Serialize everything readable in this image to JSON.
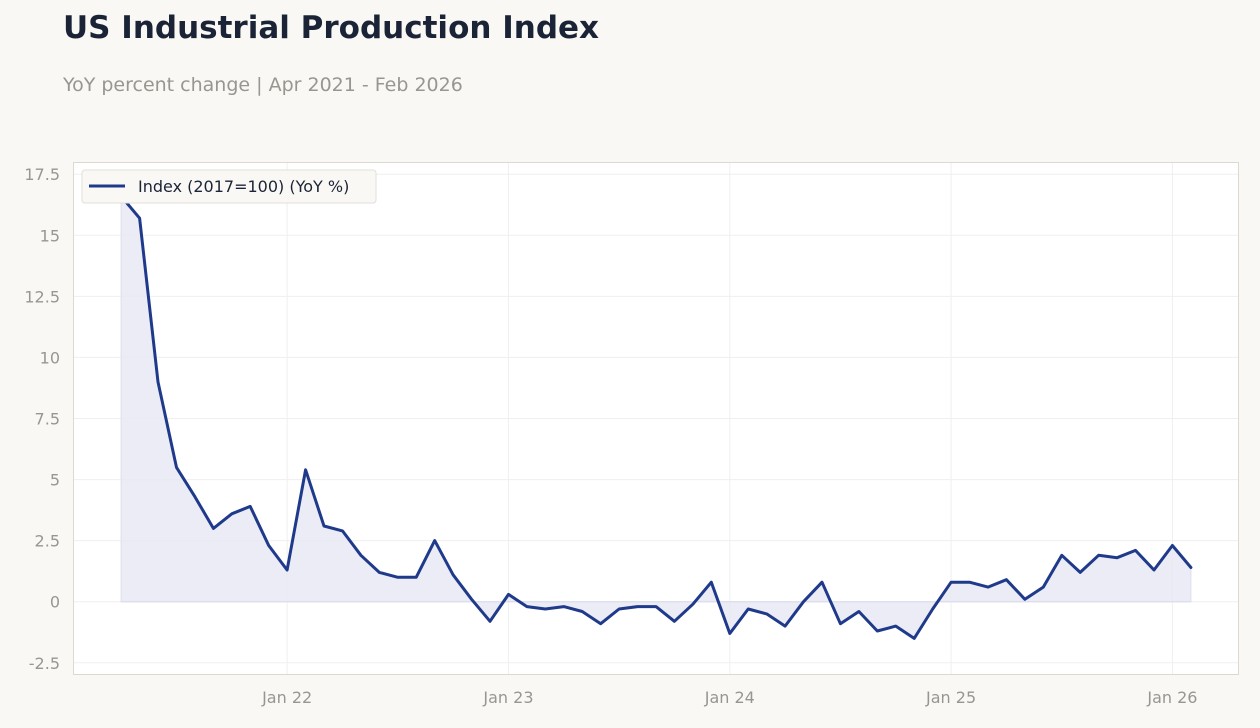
{
  "colors": {
    "background": "#f9f8f5",
    "plot_background": "#ffffff",
    "line": "#1f3a8a",
    "fill": "#e9ebf4",
    "grid": "#efefef",
    "frame": "#dcd9d2",
    "title": "#1b2436",
    "muted": "#999690"
  },
  "chart_data": {
    "type": "line",
    "title": "US Industrial Production Index",
    "subtitle": "YoY percent change | Apr 2021 - Feb 2026",
    "xlabel": "",
    "ylabel": "",
    "x_start": "2021-04",
    "x_end": "2026-02",
    "ylim": [
      -3.0,
      18.0
    ],
    "y_ticks": [
      -2.5,
      0,
      2.5,
      5,
      7.5,
      10,
      12.5,
      15,
      17.5
    ],
    "y_tick_labels": [
      "-2.5",
      "0",
      "2.5",
      "5",
      "7.5",
      "10",
      "12.5",
      "15",
      "17.5"
    ],
    "x_ticks": [
      "2022-01",
      "2023-01",
      "2024-01",
      "2025-01",
      "2026-01"
    ],
    "x_tick_labels": [
      "Jan 22",
      "Jan 23",
      "Jan 24",
      "Jan 25",
      "Jan 26"
    ],
    "grid": true,
    "fill_to_zero": true,
    "legend_position": "top-left",
    "series": [
      {
        "name": "Index (2017=100) (YoY %)",
        "x": [
          "2021-04",
          "2021-05",
          "2021-06",
          "2021-07",
          "2021-08",
          "2021-09",
          "2021-10",
          "2021-11",
          "2021-12",
          "2022-01",
          "2022-02",
          "2022-03",
          "2022-04",
          "2022-05",
          "2022-06",
          "2022-07",
          "2022-08",
          "2022-09",
          "2022-10",
          "2022-11",
          "2022-12",
          "2023-01",
          "2023-02",
          "2023-03",
          "2023-04",
          "2023-05",
          "2023-06",
          "2023-07",
          "2023-08",
          "2023-09",
          "2023-10",
          "2023-11",
          "2023-12",
          "2024-01",
          "2024-02",
          "2024-03",
          "2024-04",
          "2024-05",
          "2024-06",
          "2024-07",
          "2024-08",
          "2024-09",
          "2024-10",
          "2024-11",
          "2024-12",
          "2025-01",
          "2025-02",
          "2025-03",
          "2025-04",
          "2025-05",
          "2025-06",
          "2025-07",
          "2025-08",
          "2025-09",
          "2025-10",
          "2025-11",
          "2025-12",
          "2026-01",
          "2026-02"
        ],
        "values": [
          16.6,
          15.7,
          9.0,
          5.5,
          4.3,
          3.0,
          3.6,
          3.9,
          2.3,
          1.3,
          5.4,
          3.1,
          2.9,
          1.9,
          1.2,
          1.0,
          1.0,
          2.5,
          1.1,
          0.1,
          -0.8,
          0.3,
          -0.2,
          -0.3,
          -0.2,
          -0.4,
          -0.9,
          -0.3,
          -0.2,
          -0.2,
          -0.8,
          -0.1,
          0.8,
          -1.3,
          -0.3,
          -0.5,
          -1.0,
          0.0,
          0.8,
          -0.9,
          -0.4,
          -1.2,
          -1.0,
          -1.5,
          -0.3,
          0.8,
          0.8,
          0.6,
          0.9,
          0.1,
          0.6,
          1.9,
          1.2,
          1.9,
          1.8,
          2.1,
          1.3,
          2.3,
          1.4
        ]
      }
    ]
  }
}
